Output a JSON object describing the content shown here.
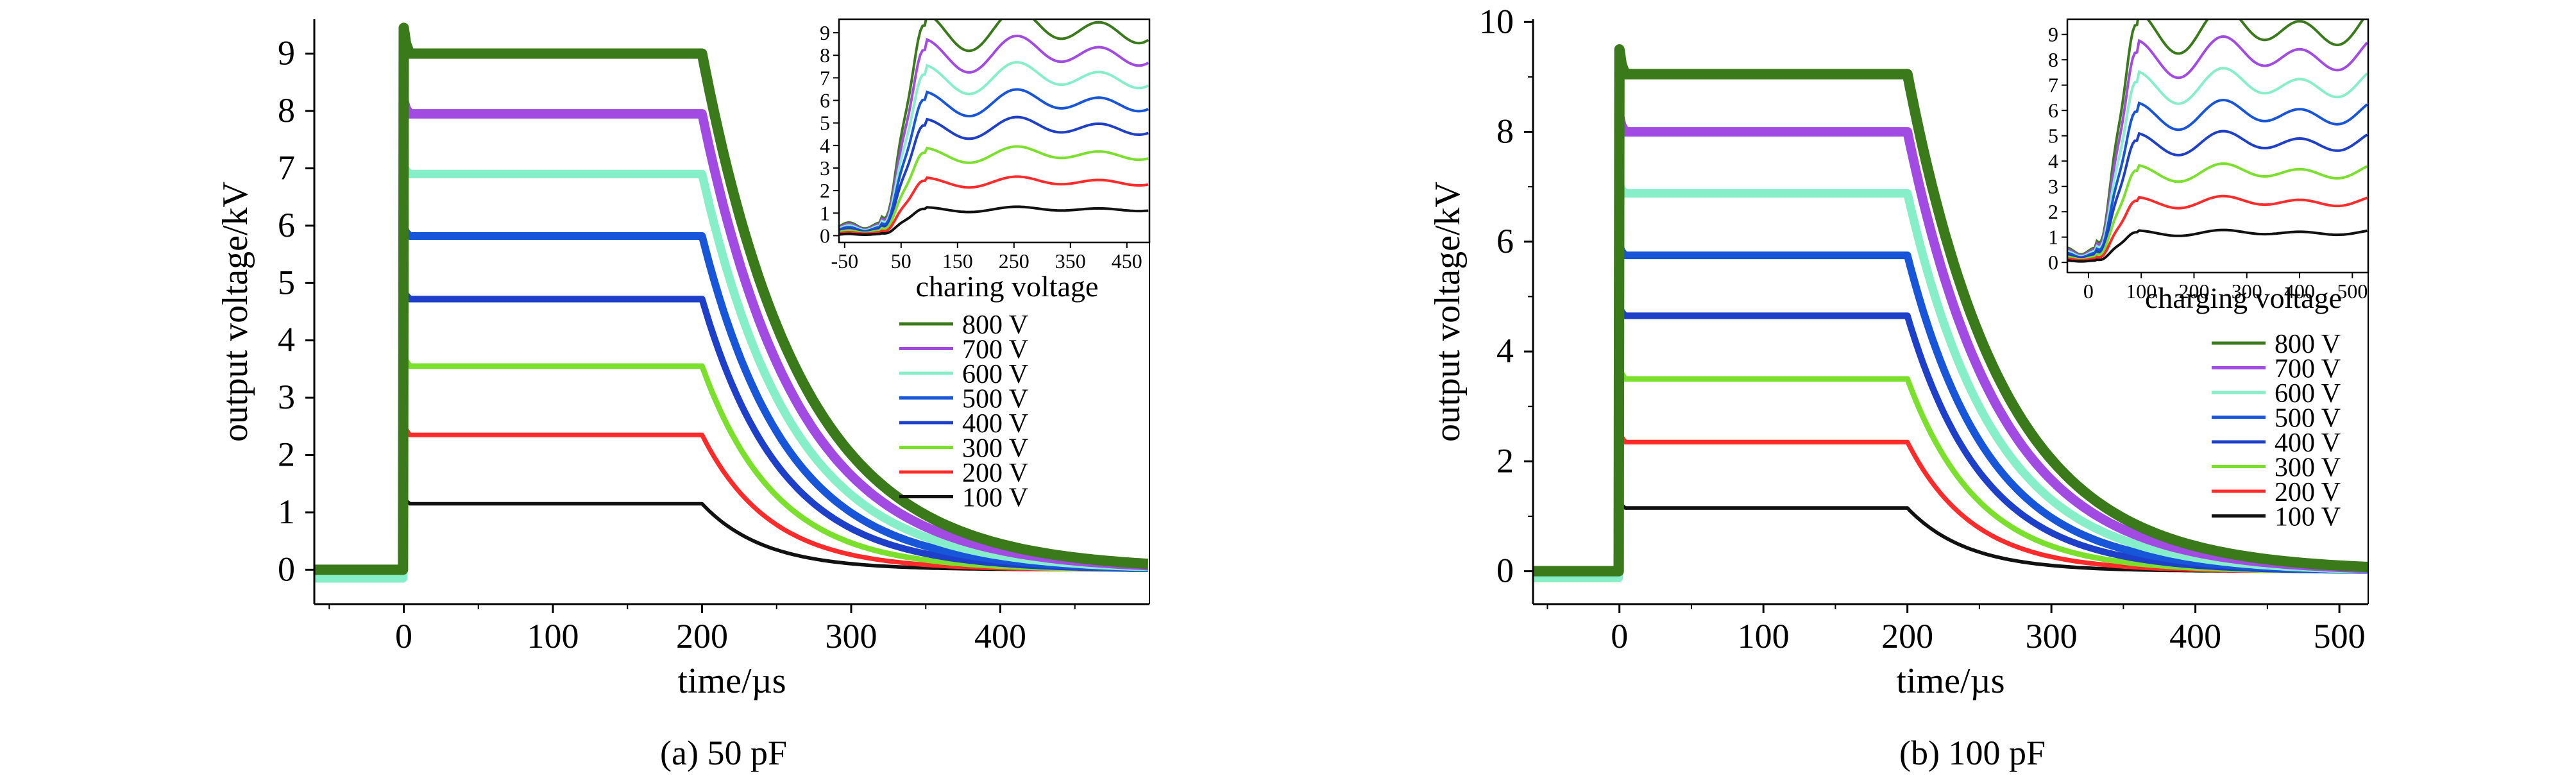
{
  "legend_levels": [
    "800 V",
    "700 V",
    "600 V",
    "500 V",
    "400 V",
    "300 V",
    "200 V",
    "100 V"
  ],
  "colors": [
    "#3a7a1a",
    "#a24be3",
    "#86efc9",
    "#1756d8",
    "#1e3fc8",
    "#7ae02c",
    "#ff2a2a",
    "#111111"
  ],
  "panels": [
    {
      "caption": "(a) 50 pF",
      "xlabel": "time/µs",
      "ylabel": "output voltage/kV",
      "inset_xlabel": "charing voltage"
    },
    {
      "caption": "(b) 100 pF",
      "xlabel": "time/µs",
      "ylabel": "output voltage/kV",
      "inset_xlabel": "charging voltage"
    }
  ],
  "chart_data": [
    {
      "type": "line",
      "xlabel": "time/µs",
      "ylabel": "output voltage/kV",
      "xlim": [
        -60,
        500
      ],
      "ylim": [
        -0.6,
        9.6
      ],
      "xticks": [
        0,
        100,
        200,
        300,
        400
      ],
      "yticks": [
        0,
        1,
        2,
        3,
        4,
        5,
        6,
        7,
        8,
        9
      ],
      "pulse_start": 0,
      "pulse_end": 200,
      "series": [
        {
          "name": "800 V",
          "plateau": 9.0,
          "peak": 9.45,
          "baseline": 0.0
        },
        {
          "name": "700 V",
          "plateau": 7.95,
          "peak": 8.2,
          "baseline": 0.0
        },
        {
          "name": "600 V",
          "plateau": 6.9,
          "peak": 7.05,
          "baseline": -0.15
        },
        {
          "name": "500 V",
          "plateau": 5.82,
          "peak": 6.0,
          "baseline": 0.0
        },
        {
          "name": "400 V",
          "plateau": 4.72,
          "peak": 4.9,
          "baseline": 0.0
        },
        {
          "name": "300 V",
          "plateau": 3.55,
          "peak": 3.8,
          "baseline": -0.12
        },
        {
          "name": "200 V",
          "plateau": 2.35,
          "peak": 2.6,
          "baseline": 0.0
        },
        {
          "name": "100 V",
          "plateau": 1.15,
          "peak": 1.3,
          "baseline": 0.0
        }
      ],
      "inset": {
        "xlabel": "charing voltage",
        "xlim": [
          -60,
          490
        ],
        "ylim": [
          -0.3,
          9.6
        ],
        "xticks": [
          -50,
          50,
          150,
          250,
          350,
          450
        ],
        "yticks": [
          0,
          1,
          2,
          3,
          4,
          5,
          6,
          7,
          8,
          9
        ]
      }
    },
    {
      "type": "line",
      "xlabel": "time/µs",
      "ylabel": "output voltage/kV",
      "xlim": [
        -60,
        520
      ],
      "ylim": [
        -0.6,
        10.05
      ],
      "xticks": [
        0,
        100,
        200,
        300,
        400,
        500
      ],
      "yticks": [
        0,
        2,
        4,
        6,
        8,
        10
      ],
      "pulse_start": 0,
      "pulse_end": 200,
      "series": [
        {
          "name": "800 V",
          "plateau": 9.05,
          "peak": 9.5,
          "baseline": 0.0
        },
        {
          "name": "700 V",
          "plateau": 8.0,
          "peak": 8.3,
          "baseline": 0.0
        },
        {
          "name": "600 V",
          "plateau": 6.88,
          "peak": 7.05,
          "baseline": -0.12
        },
        {
          "name": "500 V",
          "plateau": 5.75,
          "peak": 5.95,
          "baseline": -0.1
        },
        {
          "name": "400 V",
          "plateau": 4.65,
          "peak": 4.85,
          "baseline": 0.0
        },
        {
          "name": "300 V",
          "plateau": 3.5,
          "peak": 3.75,
          "baseline": -0.15
        },
        {
          "name": "200 V",
          "plateau": 2.35,
          "peak": 2.6,
          "baseline": -0.05
        },
        {
          "name": "100 V",
          "plateau": 1.15,
          "peak": 1.3,
          "baseline": 0.0
        }
      ],
      "inset": {
        "xlabel": "charging voltage",
        "xlim": [
          -40,
          530
        ],
        "ylim": [
          -0.4,
          9.6
        ],
        "xticks": [
          0,
          100,
          200,
          300,
          400,
          500
        ],
        "yticks": [
          0,
          1,
          2,
          3,
          4,
          5,
          6,
          7,
          8,
          9
        ]
      }
    }
  ]
}
